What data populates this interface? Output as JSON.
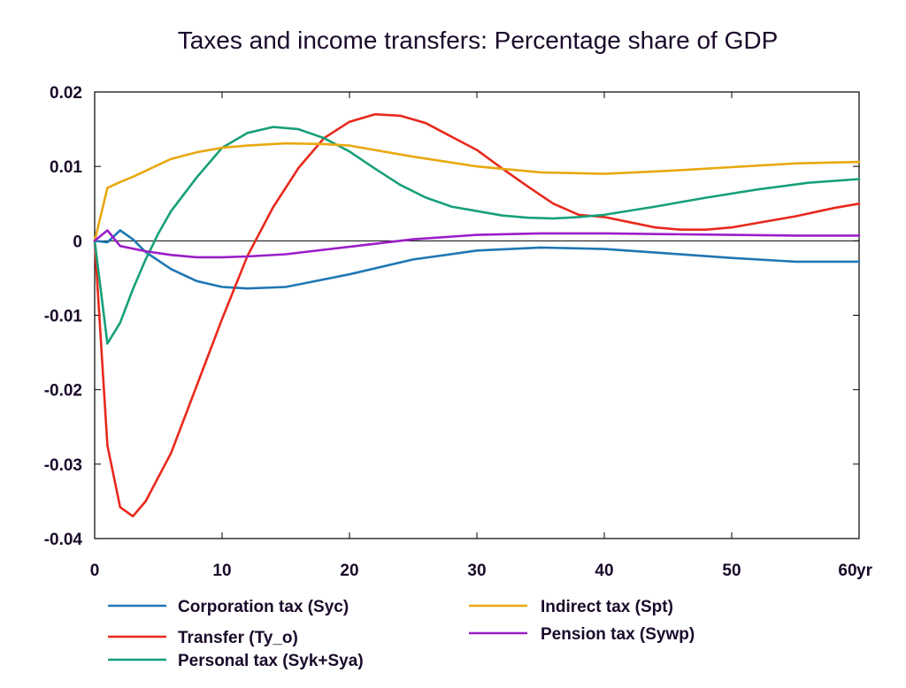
{
  "chart_data": {
    "type": "line",
    "title": "Taxes and income transfers: Percentage share of GDP",
    "x_unit_label": "yr",
    "xlim": [
      0,
      60
    ],
    "ylim": [
      -0.04,
      0.02
    ],
    "x_ticks": [
      0,
      10,
      20,
      30,
      40,
      50,
      60
    ],
    "x_tick_labels": [
      "0",
      "10",
      "20",
      "30",
      "40",
      "50",
      "60"
    ],
    "y_ticks": [
      0.02,
      0.01,
      0,
      -0.01,
      -0.02,
      -0.03,
      -0.04
    ],
    "y_tick_labels": [
      "0.02",
      "0.01",
      "0",
      "-0.01",
      "-0.02",
      "-0.03",
      "-0.04"
    ],
    "grid": false,
    "legend_position": "bottom",
    "series": [
      {
        "name": "Corporation tax (Syc)",
        "color": "#1f77b4",
        "points": [
          [
            0,
            0
          ],
          [
            1,
            -0.0002
          ],
          [
            2,
            0.0014
          ],
          [
            3,
            0.0002
          ],
          [
            4,
            -0.0015
          ],
          [
            6,
            -0.0038
          ],
          [
            8,
            -0.0054
          ],
          [
            10,
            -0.0062
          ],
          [
            12,
            -0.0064
          ],
          [
            15,
            -0.0062
          ],
          [
            20,
            -0.0045
          ],
          [
            25,
            -0.0025
          ],
          [
            30,
            -0.0013
          ],
          [
            35,
            -0.0009
          ],
          [
            40,
            -0.0011
          ],
          [
            45,
            -0.0017
          ],
          [
            50,
            -0.0023
          ],
          [
            55,
            -0.0028
          ],
          [
            60,
            -0.0028
          ]
        ]
      },
      {
        "name": "Transfer (Ty_o)",
        "color": "#e8291c",
        "points": [
          [
            0,
            0
          ],
          [
            1,
            -0.0275
          ],
          [
            2,
            -0.0358
          ],
          [
            3,
            -0.037
          ],
          [
            4,
            -0.035
          ],
          [
            6,
            -0.0285
          ],
          [
            8,
            -0.0195
          ],
          [
            10,
            -0.0105
          ],
          [
            12,
            -0.002
          ],
          [
            14,
            0.0045
          ],
          [
            16,
            0.0098
          ],
          [
            18,
            0.0138
          ],
          [
            20,
            0.016
          ],
          [
            22,
            0.017
          ],
          [
            24,
            0.0168
          ],
          [
            26,
            0.0158
          ],
          [
            28,
            0.014
          ],
          [
            30,
            0.0122
          ],
          [
            32,
            0.0097
          ],
          [
            34,
            0.0073
          ],
          [
            36,
            0.005
          ],
          [
            38,
            0.0035
          ],
          [
            40,
            0.0032
          ],
          [
            42,
            0.0025
          ],
          [
            44,
            0.0018
          ],
          [
            46,
            0.0015
          ],
          [
            48,
            0.0015
          ],
          [
            50,
            0.0018
          ],
          [
            52,
            0.0024
          ],
          [
            55,
            0.0033
          ],
          [
            58,
            0.0044
          ],
          [
            60,
            0.005
          ]
        ]
      },
      {
        "name": "Personal tax (Syk+Sya)",
        "color": "#17a07a",
        "points": [
          [
            0,
            0
          ],
          [
            1,
            -0.0138
          ],
          [
            2,
            -0.011
          ],
          [
            3,
            -0.0065
          ],
          [
            4,
            -0.0025
          ],
          [
            5,
            0.001
          ],
          [
            6,
            0.004
          ],
          [
            8,
            0.0085
          ],
          [
            10,
            0.0125
          ],
          [
            12,
            0.0145
          ],
          [
            14,
            0.0153
          ],
          [
            16,
            0.015
          ],
          [
            18,
            0.0138
          ],
          [
            20,
            0.012
          ],
          [
            22,
            0.0097
          ],
          [
            24,
            0.0075
          ],
          [
            26,
            0.0058
          ],
          [
            28,
            0.0046
          ],
          [
            30,
            0.004
          ],
          [
            32,
            0.0034
          ],
          [
            34,
            0.0031
          ],
          [
            36,
            0.003
          ],
          [
            38,
            0.0032
          ],
          [
            40,
            0.0035
          ],
          [
            44,
            0.0046
          ],
          [
            48,
            0.0058
          ],
          [
            52,
            0.0069
          ],
          [
            56,
            0.0078
          ],
          [
            60,
            0.0083
          ]
        ]
      },
      {
        "name": "Indirect tax (Spt)",
        "color": "#e8a80f",
        "points": [
          [
            0,
            0
          ],
          [
            1,
            0.0071
          ],
          [
            2,
            0.0079
          ],
          [
            3,
            0.0086
          ],
          [
            4,
            0.0094
          ],
          [
            6,
            0.011
          ],
          [
            8,
            0.0119
          ],
          [
            10,
            0.0125
          ],
          [
            12,
            0.0128
          ],
          [
            15,
            0.0131
          ],
          [
            18,
            0.013
          ],
          [
            20,
            0.0128
          ],
          [
            25,
            0.0113
          ],
          [
            30,
            0.01
          ],
          [
            35,
            0.0092
          ],
          [
            40,
            0.009
          ],
          [
            45,
            0.0094
          ],
          [
            50,
            0.0099
          ],
          [
            55,
            0.0104
          ],
          [
            60,
            0.0106
          ]
        ]
      },
      {
        "name": "Pension tax (Sywp)",
        "color": "#9b1ec8",
        "points": [
          [
            0,
            0
          ],
          [
            1,
            0.0014
          ],
          [
            2,
            -0.0007
          ],
          [
            4,
            -0.0014
          ],
          [
            6,
            -0.0019
          ],
          [
            8,
            -0.0022
          ],
          [
            10,
            -0.0022
          ],
          [
            12,
            -0.0021
          ],
          [
            15,
            -0.0018
          ],
          [
            20,
            -0.0008
          ],
          [
            25,
            0.0002
          ],
          [
            30,
            0.0008
          ],
          [
            35,
            0.001
          ],
          [
            40,
            0.001
          ],
          [
            45,
            0.0009
          ],
          [
            50,
            0.0008
          ],
          [
            55,
            0.0007
          ],
          [
            60,
            0.0007
          ]
        ]
      }
    ],
    "legend_layout": [
      {
        "series": 0,
        "col": 0,
        "row": 0
      },
      {
        "series": 1,
        "col": 0,
        "row": 1
      },
      {
        "series": 2,
        "col": 0,
        "row": 2
      },
      {
        "series": 3,
        "col": 1,
        "row": 0
      },
      {
        "series": 4,
        "col": 1,
        "row": 1
      }
    ]
  }
}
